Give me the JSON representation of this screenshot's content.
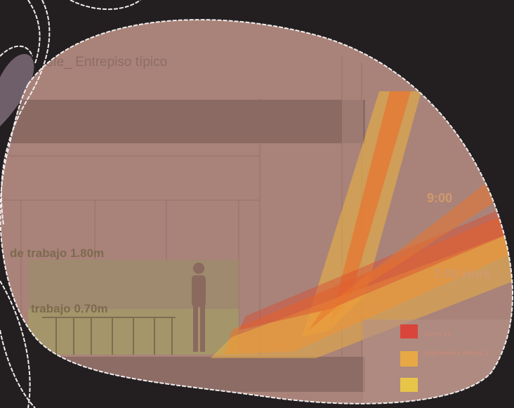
{
  "section_title": "sfe_ Entrepiso típico",
  "heights": {
    "work_plane_high": "de trabajo 1.80m",
    "work_plane_low": "trabajo 0.70m"
  },
  "sun_times": {
    "morning": "9:00",
    "early": "7:00 Hora"
  },
  "legend": {
    "items": [
      {
        "label": "Junio 21",
        "color": "#d9453a"
      },
      {
        "label": "Septiembre Marzo 2",
        "color": "#e7a845"
      },
      {
        "label": "",
        "color": "#e8c548"
      }
    ]
  },
  "colors": {
    "background": "#231f20",
    "blob_fill": "#a98379",
    "beam": "#8a6a63",
    "ray_orange": "#e8742e",
    "ray_yellow": "#efb43f",
    "ray_red": "#d94a30"
  }
}
